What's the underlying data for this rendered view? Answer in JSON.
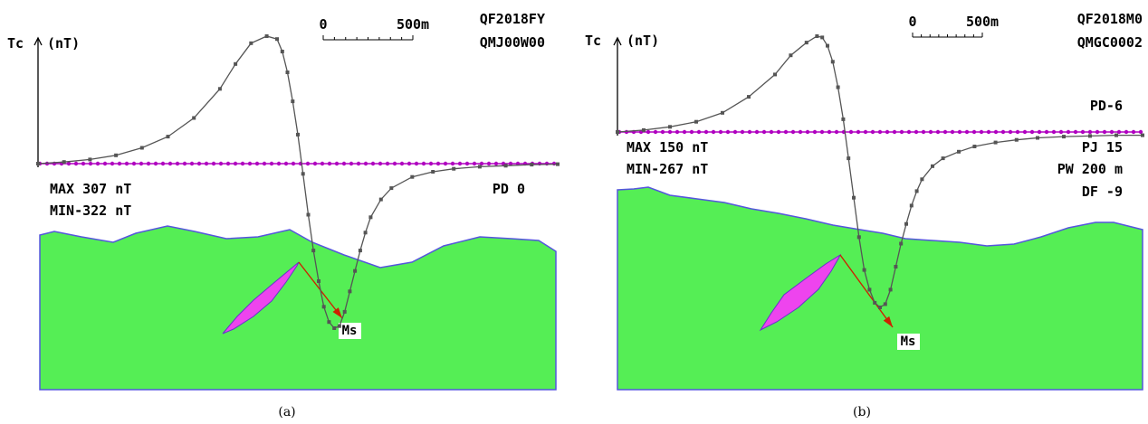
{
  "chart_data": [
    {
      "type": "line",
      "caption": "(a)",
      "ylabel": "Tc",
      "yunit": "(nT)",
      "scale_bar": {
        "start": "0",
        "end": "500m"
      },
      "header": [
        "QF2018FY",
        "QMJ00W00"
      ],
      "stats": [
        "MAX 307 nT",
        "MIN-322 nT"
      ],
      "params": [
        "PD 0"
      ],
      "body_label": "Ms",
      "xlim": [
        0,
        100
      ],
      "ylim": [
        -322,
        307
      ],
      "zero_level": 0,
      "colors": {
        "curve": "#555555",
        "baseline": "#b000c0",
        "ground": "#55ee55",
        "surface_line": "#5555dd",
        "body": "#ee44ee",
        "arrow": "#cc2200"
      },
      "series": [
        {
          "x": [
            0,
            5,
            10,
            15,
            20,
            25,
            30,
            35,
            38,
            41,
            44,
            46,
            47,
            48,
            49,
            50,
            51,
            52,
            53,
            54,
            55,
            56,
            57,
            58,
            59,
            60,
            61,
            62,
            63,
            64,
            66,
            68,
            72,
            76,
            80,
            85,
            90,
            95,
            100
          ],
          "values": [
            0,
            4,
            10,
            20,
            38,
            65,
            110,
            180,
            240,
            290,
            307,
            300,
            270,
            220,
            150,
            70,
            -20,
            -100,
            -170,
            -230,
            -280,
            -310,
            -322,
            -318,
            -290,
            -250,
            -210,
            -170,
            -135,
            -105,
            -70,
            -48,
            -26,
            -16,
            -10,
            -6,
            -4,
            -2,
            -1
          ]
        }
      ]
    },
    {
      "type": "line",
      "caption": "(b)",
      "ylabel": "Tc",
      "yunit": "(nT)",
      "scale_bar": {
        "start": "0",
        "end": "500m"
      },
      "header": [
        "QF2018M0",
        "QMGC0002"
      ],
      "stats": [
        "MAX 150 nT",
        "MIN-267 nT"
      ],
      "params": [
        "PD-6",
        "PJ  15",
        "PW 200 m",
        "DF -9"
      ],
      "body_label": "Ms",
      "xlim": [
        0,
        100
      ],
      "ylim": [
        -267,
        150
      ],
      "zero_level": 0,
      "colors": {
        "curve": "#555555",
        "baseline": "#b000c0",
        "ground": "#55ee55",
        "surface_line": "#5555dd",
        "body": "#ee44ee",
        "arrow": "#cc2200"
      },
      "series": [
        {
          "x": [
            0,
            5,
            10,
            15,
            20,
            25,
            30,
            33,
            36,
            38,
            39,
            40,
            41,
            42,
            43,
            44,
            45,
            46,
            47,
            48,
            49,
            50,
            51,
            52,
            53,
            54,
            55,
            56,
            57,
            58,
            60,
            62,
            65,
            68,
            72,
            76,
            80,
            85,
            90,
            95,
            100
          ],
          "values": [
            0,
            3,
            8,
            16,
            30,
            55,
            90,
            120,
            140,
            150,
            148,
            135,
            110,
            70,
            20,
            -40,
            -100,
            -160,
            -210,
            -240,
            -260,
            -267,
            -262,
            -240,
            -205,
            -170,
            -140,
            -112,
            -90,
            -72,
            -52,
            -40,
            -30,
            -22,
            -16,
            -12,
            -9,
            -7,
            -6,
            -5,
            -5
          ]
        }
      ]
    }
  ]
}
